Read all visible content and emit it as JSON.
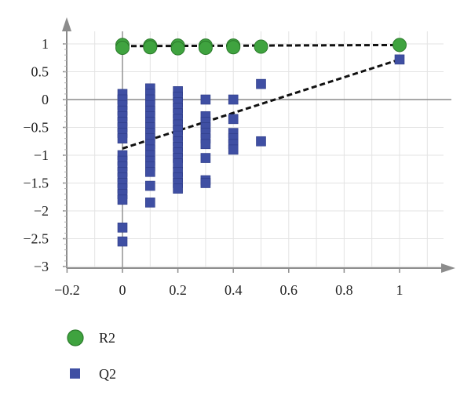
{
  "chart_data": {
    "type": "scatter",
    "title": "",
    "xlabel": "",
    "ylabel": "",
    "xlim": [
      -0.2,
      1.0
    ],
    "ylim": [
      -3,
      1
    ],
    "x_ticks": [
      -0.2,
      0,
      0.2,
      0.4,
      0.6,
      0.8,
      1
    ],
    "x_tick_labels": [
      "−0.2",
      "0",
      "0.2",
      "0.4",
      "0.6",
      "0.8",
      "1"
    ],
    "y_ticks": [
      1,
      0.5,
      0,
      -0.5,
      -1,
      -1.5,
      -2,
      -2.5,
      -3
    ],
    "y_tick_labels": [
      "1",
      "0.5",
      "0",
      "−0.5",
      "−1",
      "−1.5",
      "−2",
      "−2.5",
      "−3"
    ],
    "grid": true,
    "legend_position": "bottom-left",
    "series": [
      {
        "name": "R2",
        "marker": "circle",
        "color": "#3fa33f",
        "points": [
          [
            0,
            0.98
          ],
          [
            0,
            0.93
          ],
          [
            0.1,
            0.97
          ],
          [
            0.1,
            0.94
          ],
          [
            0.2,
            0.97
          ],
          [
            0.2,
            0.92
          ],
          [
            0.3,
            0.97
          ],
          [
            0.3,
            0.93
          ],
          [
            0.4,
            0.97
          ],
          [
            0.4,
            0.94
          ],
          [
            0.5,
            0.95
          ],
          [
            1,
            0.98
          ]
        ]
      },
      {
        "name": "Q2",
        "marker": "square",
        "color": "#3f4fa3",
        "points": [
          [
            0,
            0.1
          ],
          [
            0,
            0.0
          ],
          [
            0,
            -0.1
          ],
          [
            0,
            -0.2
          ],
          [
            0,
            -0.3
          ],
          [
            0,
            -0.4
          ],
          [
            0,
            -0.5
          ],
          [
            0,
            -0.6
          ],
          [
            0,
            -0.7
          ],
          [
            0,
            -1.0
          ],
          [
            0,
            -1.1
          ],
          [
            0,
            -1.2
          ],
          [
            0,
            -1.3
          ],
          [
            0,
            -1.4
          ],
          [
            0,
            -1.5
          ],
          [
            0,
            -1.6
          ],
          [
            0,
            -1.7
          ],
          [
            0,
            -1.8
          ],
          [
            0,
            -2.3
          ],
          [
            0,
            -2.55
          ],
          [
            0.1,
            0.2
          ],
          [
            0.1,
            0.1
          ],
          [
            0.1,
            0.0
          ],
          [
            0.1,
            -0.1
          ],
          [
            0.1,
            -0.2
          ],
          [
            0.1,
            -0.3
          ],
          [
            0.1,
            -0.4
          ],
          [
            0.1,
            -0.5
          ],
          [
            0.1,
            -0.6
          ],
          [
            0.1,
            -0.7
          ],
          [
            0.1,
            -0.8
          ],
          [
            0.1,
            -0.9
          ],
          [
            0.1,
            -1.0
          ],
          [
            0.1,
            -1.1
          ],
          [
            0.1,
            -1.2
          ],
          [
            0.1,
            -1.3
          ],
          [
            0.1,
            -1.55
          ],
          [
            0.1,
            -1.85
          ],
          [
            0.2,
            0.15
          ],
          [
            0.2,
            0.05
          ],
          [
            0.2,
            -0.05
          ],
          [
            0.2,
            -0.15
          ],
          [
            0.2,
            -0.25
          ],
          [
            0.2,
            -0.35
          ],
          [
            0.2,
            -0.45
          ],
          [
            0.2,
            -0.55
          ],
          [
            0.2,
            -0.65
          ],
          [
            0.2,
            -0.75
          ],
          [
            0.2,
            -0.85
          ],
          [
            0.2,
            -0.95
          ],
          [
            0.2,
            -1.05
          ],
          [
            0.2,
            -1.15
          ],
          [
            0.2,
            -1.3
          ],
          [
            0.2,
            -1.4
          ],
          [
            0.2,
            -1.5
          ],
          [
            0.2,
            -1.6
          ],
          [
            0.3,
            0.0
          ],
          [
            0.3,
            -0.3
          ],
          [
            0.3,
            -0.4
          ],
          [
            0.3,
            -0.5
          ],
          [
            0.3,
            -0.6
          ],
          [
            0.3,
            -0.7
          ],
          [
            0.3,
            -0.8
          ],
          [
            0.3,
            -1.05
          ],
          [
            0.3,
            -1.45
          ],
          [
            0.3,
            -1.5
          ],
          [
            0.4,
            0.0
          ],
          [
            0.4,
            -0.35
          ],
          [
            0.4,
            -0.6
          ],
          [
            0.4,
            -0.7
          ],
          [
            0.4,
            -0.8
          ],
          [
            0.4,
            -0.9
          ],
          [
            0.5,
            0.28
          ],
          [
            0.5,
            -0.75
          ],
          [
            1,
            0.72
          ]
        ]
      }
    ],
    "trend_lines": [
      {
        "series": "R2",
        "from": [
          0,
          0.96
        ],
        "to": [
          1,
          0.98
        ],
        "style": "dashed",
        "color": "#111111"
      },
      {
        "series": "Q2",
        "from": [
          0,
          -0.88
        ],
        "to": [
          1,
          0.72
        ],
        "style": "dashed",
        "color": "#111111"
      }
    ]
  },
  "legend": {
    "items": [
      {
        "label": "R2",
        "marker": "circle",
        "color": "#3fa33f"
      },
      {
        "label": "Q2",
        "marker": "square",
        "color": "#3f4fa3"
      }
    ]
  }
}
